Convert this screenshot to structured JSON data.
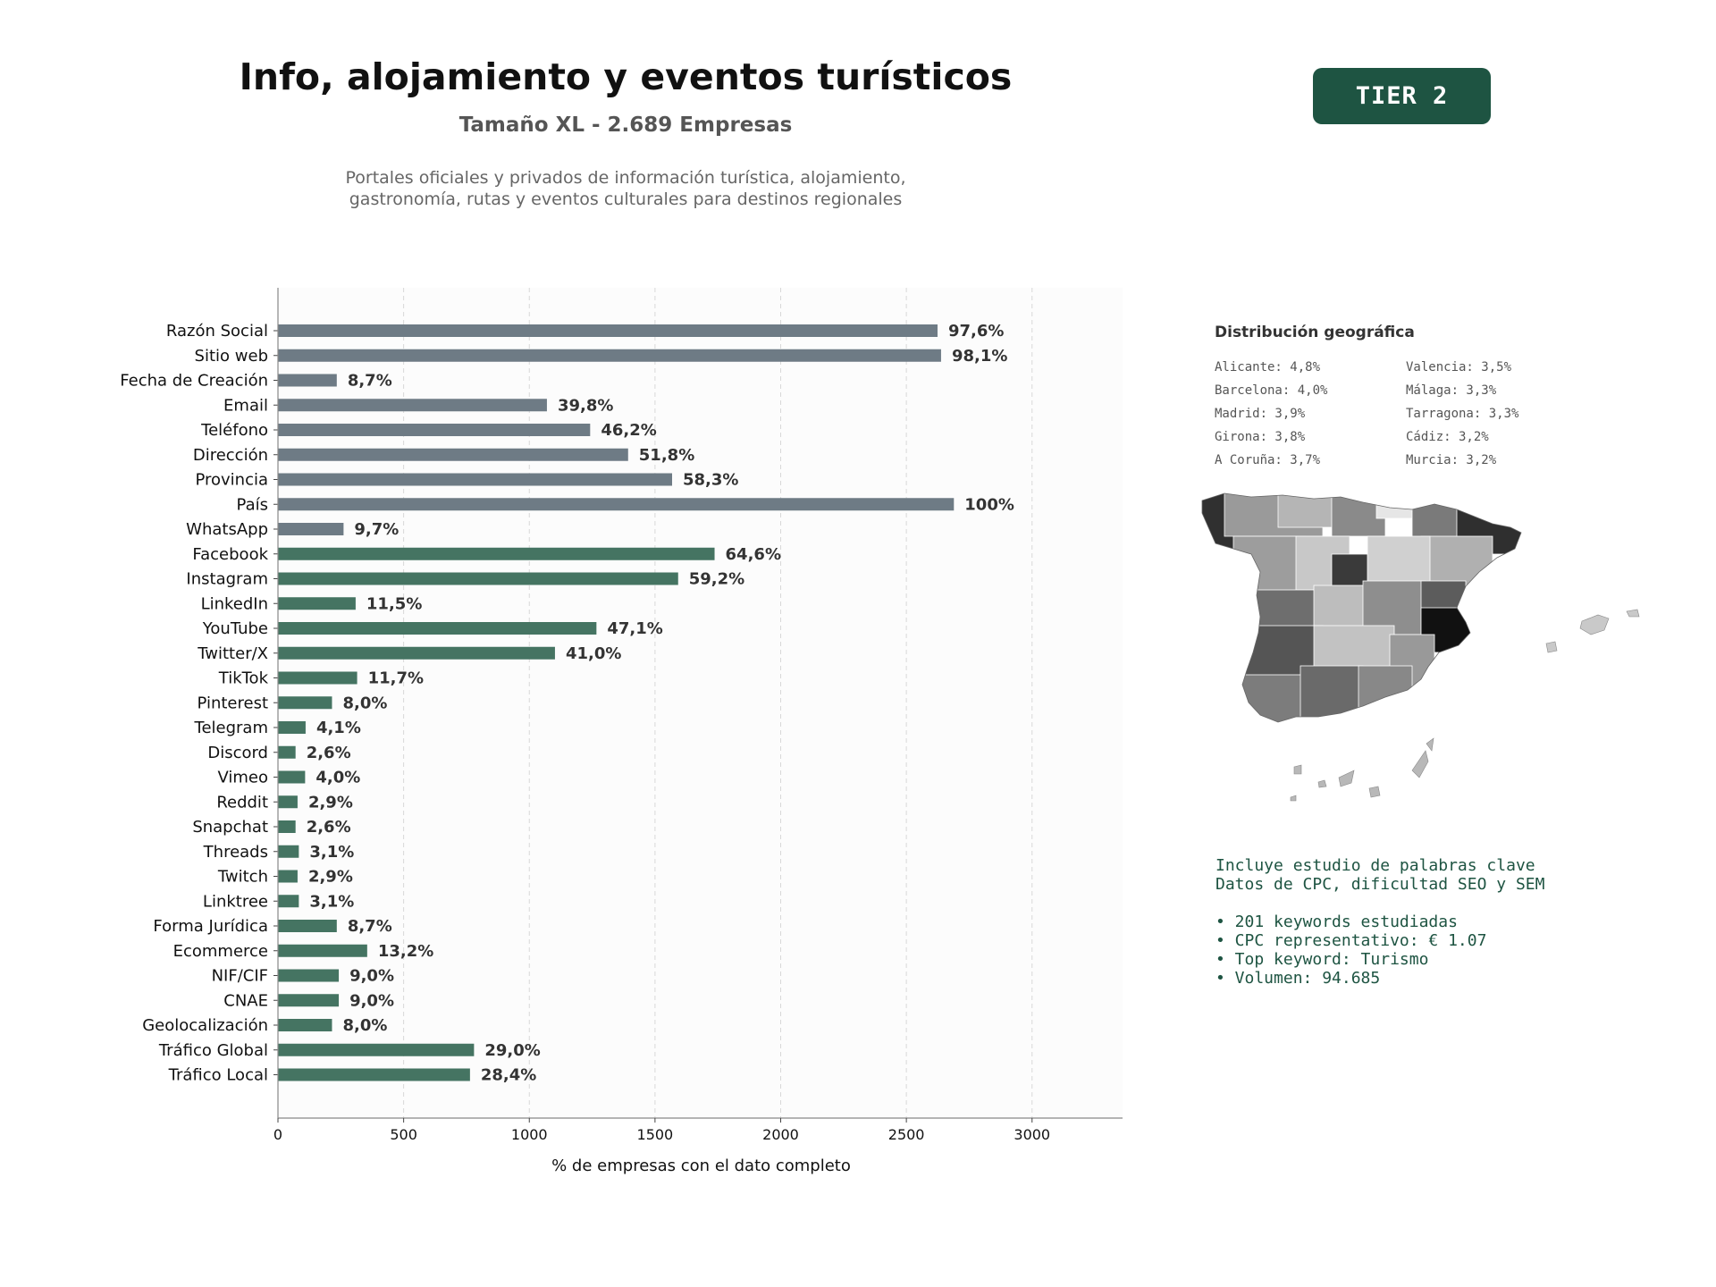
{
  "header": {
    "title": "Info, alojamiento y eventos turísticos",
    "subtitle": "Tamaño XL - 2.689 Empresas",
    "description_lines": [
      "Portales oficiales y privados de información turística, alojamiento,",
      "gastronomía, rutas y eventos culturales para destinos regionales"
    ],
    "tier_label": "TIER 2"
  },
  "chart_data": {
    "type": "bar",
    "orientation": "horizontal",
    "xlabel": "% de empresas con el dato completo",
    "ylabel": "",
    "xlim": [
      0,
      3360
    ],
    "xticks": [
      0,
      500,
      1000,
      1500,
      2000,
      2500,
      3000
    ],
    "grid": "vertical dashed",
    "colors": {
      "contact": "#6e7b85",
      "digital": "#457462"
    },
    "categories": [
      "Razón Social",
      "Sitio web",
      "Fecha de Creación",
      "Email",
      "Teléfono",
      "Dirección",
      "Provincia",
      "País",
      "WhatsApp",
      "Facebook",
      "Instagram",
      "LinkedIn",
      "YouTube",
      "Twitter/X",
      "TikTok",
      "Pinterest",
      "Telegram",
      "Discord",
      "Vimeo",
      "Reddit",
      "Snapchat",
      "Threads",
      "Twitch",
      "Linktree",
      "Forma Jurídica",
      "Ecommerce",
      "NIF/CIF",
      "CNAE",
      "Geolocalización",
      "Tráfico Global",
      "Tráfico Local"
    ],
    "values": [
      2624,
      2638,
      234,
      1070,
      1242,
      1393,
      1568,
      2689,
      261,
      1737,
      1592,
      309,
      1267,
      1102,
      315,
      215,
      110,
      70,
      108,
      78,
      70,
      83,
      78,
      83,
      234,
      355,
      242,
      242,
      215,
      780,
      764
    ],
    "labels": [
      "97,6%",
      "98,1%",
      "8,7%",
      "39,8%",
      "46,2%",
      "51,8%",
      "58,3%",
      "100%",
      "9,7%",
      "64,6%",
      "59,2%",
      "11,5%",
      "47,1%",
      "41,0%",
      "11,7%",
      "8,0%",
      "4,1%",
      "2,6%",
      "4,0%",
      "2,9%",
      "2,6%",
      "3,1%",
      "2,9%",
      "3,1%",
      "8,7%",
      "13,2%",
      "9,0%",
      "9,0%",
      "8,0%",
      "29,0%",
      "28,4%"
    ],
    "groups": [
      "contact",
      "contact",
      "contact",
      "contact",
      "contact",
      "contact",
      "contact",
      "contact",
      "contact",
      "digital",
      "digital",
      "digital",
      "digital",
      "digital",
      "digital",
      "digital",
      "digital",
      "digital",
      "digital",
      "digital",
      "digital",
      "digital",
      "digital",
      "digital",
      "digital",
      "digital",
      "digital",
      "digital",
      "digital",
      "digital",
      "digital"
    ]
  },
  "geo": {
    "title": "Distribución geográfica",
    "items": [
      "Alicante: 4,8%",
      "Valencia: 3,5%",
      "Barcelona: 4,0%",
      "Málaga: 3,3%",
      "Madrid: 3,9%",
      "Tarragona: 3,3%",
      "Girona: 3,8%",
      "Cádiz: 3,2%",
      "A Coruña: 3,7%",
      "Murcia: 3,2%"
    ]
  },
  "keywords": {
    "line1": "Incluye estudio de palabras clave",
    "line2": "Datos de CPC, dificultad SEO y SEM",
    "bullets": [
      "• 201 keywords estudiadas",
      "• CPC representativo: € 1.07",
      "• Top keyword: Turismo",
      "• Volumen: 94.685"
    ]
  }
}
